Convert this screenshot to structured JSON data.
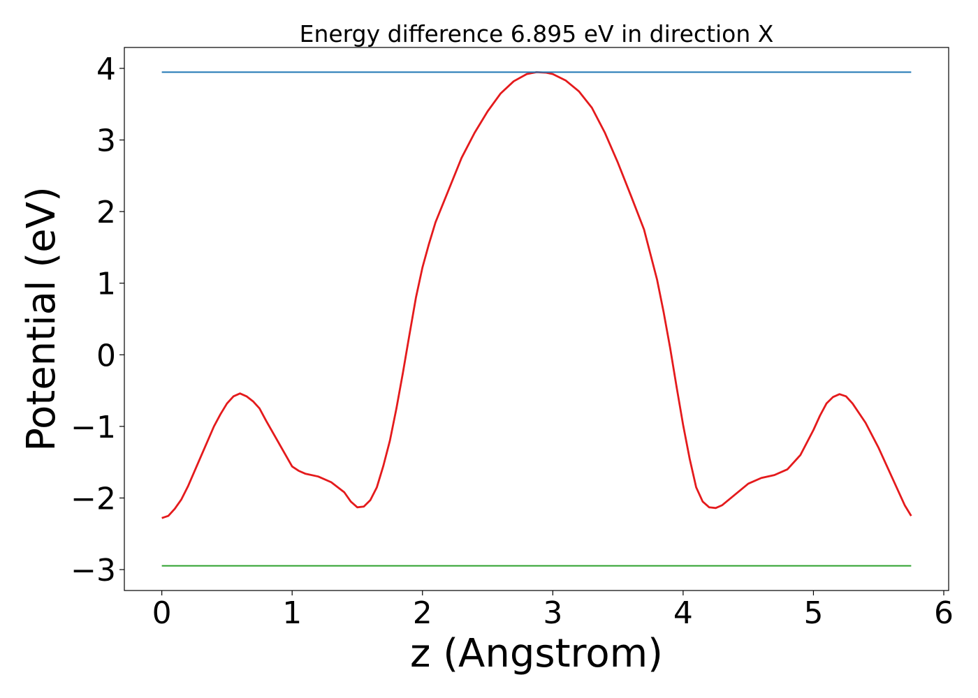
{
  "chart_data": {
    "type": "line",
    "title": "Energy difference 6.895 eV in direction X",
    "xlabel": "z (Angstrom)",
    "ylabel": "Potential (eV)",
    "xlim": [
      -0.2875,
      6.0375
    ],
    "ylim": [
      -3.292,
      4.292
    ],
    "xticks": [
      0,
      1,
      2,
      3,
      4,
      5,
      6
    ],
    "yticks": [
      {
        "value": -3,
        "label": "−3"
      },
      {
        "value": -2,
        "label": "−2"
      },
      {
        "value": -1,
        "label": "−1"
      },
      0,
      1,
      2,
      3,
      4
    ],
    "grid": false,
    "series": [
      {
        "color": "#e41a1c",
        "x": [
          0,
          0.05,
          0.1,
          0.15,
          0.2,
          0.3,
          0.4,
          0.45,
          0.5,
          0.55,
          0.6,
          0.65,
          0.7,
          0.75,
          0.8,
          0.9,
          1.0,
          1.05,
          1.1,
          1.2,
          1.3,
          1.4,
          1.45,
          1.5,
          1.55,
          1.6,
          1.65,
          1.7,
          1.75,
          1.8,
          1.85,
          1.9,
          1.95,
          2.0,
          2.05,
          2.1,
          2.2,
          2.3,
          2.4,
          2.5,
          2.6,
          2.7,
          2.8,
          2.875,
          2.95,
          3.0,
          3.1,
          3.2,
          3.3,
          3.4,
          3.5,
          3.6,
          3.7,
          3.8,
          3.85,
          3.9,
          3.95,
          4.0,
          4.05,
          4.1,
          4.15,
          4.2,
          4.25,
          4.3,
          4.4,
          4.5,
          4.6,
          4.7,
          4.8,
          4.9,
          5.0,
          5.05,
          5.1,
          5.15,
          5.2,
          5.25,
          5.3,
          5.4,
          5.5,
          5.6,
          5.65,
          5.7,
          5.75
        ],
        "values": [
          -2.28,
          -2.25,
          -2.15,
          -2.02,
          -1.84,
          -1.42,
          -1.0,
          -0.83,
          -0.68,
          -0.58,
          -0.54,
          -0.58,
          -0.65,
          -0.75,
          -0.92,
          -1.24,
          -1.56,
          -1.62,
          -1.66,
          -1.7,
          -1.78,
          -1.92,
          -2.05,
          -2.13,
          -2.12,
          -2.03,
          -1.85,
          -1.55,
          -1.2,
          -0.75,
          -0.25,
          0.28,
          0.8,
          1.22,
          1.55,
          1.85,
          2.3,
          2.75,
          3.1,
          3.4,
          3.65,
          3.82,
          3.92,
          3.9475,
          3.94,
          3.92,
          3.83,
          3.68,
          3.45,
          3.1,
          2.68,
          2.22,
          1.75,
          1.05,
          0.6,
          0.1,
          -0.45,
          -0.98,
          -1.45,
          -1.85,
          -2.05,
          -2.13,
          -2.14,
          -2.1,
          -1.95,
          -1.8,
          -1.72,
          -1.68,
          -1.6,
          -1.4,
          -1.05,
          -0.85,
          -0.68,
          -0.59,
          -0.55,
          -0.58,
          -0.68,
          -0.95,
          -1.3,
          -1.7,
          -1.9,
          -2.1,
          -2.25
        ]
      },
      {
        "color": "#1f77b4",
        "x": [
          0,
          5.75
        ],
        "values": [
          3.9475,
          3.9475
        ]
      },
      {
        "color": "#2ca02c",
        "x": [
          0,
          5.75
        ],
        "values": [
          -2.9475,
          -2.9475
        ]
      }
    ]
  }
}
